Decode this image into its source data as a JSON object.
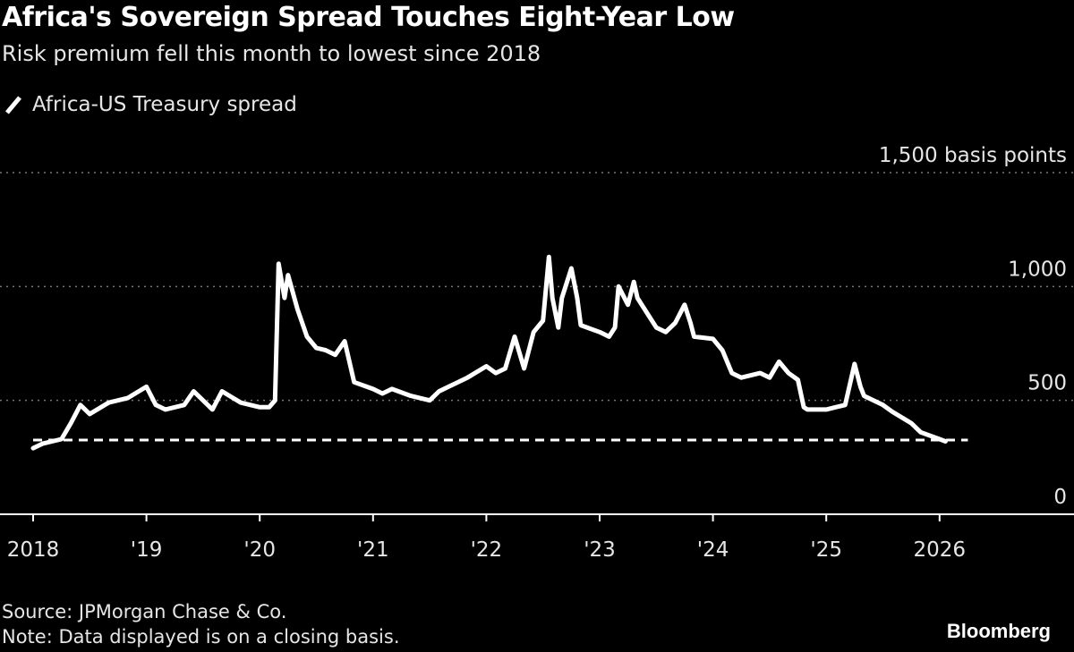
{
  "chart_data": {
    "type": "line",
    "title": "Africa's Sovereign Spread Touches Eight-Year Low",
    "subtitle": "Risk premium fell this month to lowest since 2018",
    "ylabel_unit": "basis points",
    "ylim": [
      0,
      1500
    ],
    "yticks": [
      {
        "value": 0,
        "label": "0"
      },
      {
        "value": 500,
        "label": "500"
      },
      {
        "value": 1000,
        "label": "1,000"
      },
      {
        "value": 1500,
        "label": "1,500 basis points"
      }
    ],
    "xlim": [
      "2018-01",
      "2026-12"
    ],
    "xticks": [
      {
        "date": "2018-01",
        "label": "2018"
      },
      {
        "date": "2019-01",
        "label": "'19"
      },
      {
        "date": "2020-01",
        "label": "'20"
      },
      {
        "date": "2021-01",
        "label": "'21"
      },
      {
        "date": "2022-01",
        "label": "'22"
      },
      {
        "date": "2023-01",
        "label": "'23"
      },
      {
        "date": "2024-01",
        "label": "'24"
      },
      {
        "date": "2025-01",
        "label": "'25"
      },
      {
        "date": "2026-01",
        "label": "2026"
      }
    ],
    "grid": "horizontal dotted",
    "legend_placement": "top-left",
    "reference_line": {
      "value": 326,
      "style": "dashed",
      "from": "2018-01",
      "to": "2026-04"
    },
    "series": [
      {
        "name": "Africa-US Treasury spread",
        "color": "#ffffff",
        "points": [
          [
            "2018-01",
            290
          ],
          [
            "2018-02",
            310
          ],
          [
            "2018-04",
            330
          ],
          [
            "2018-05",
            400
          ],
          [
            "2018-06",
            480
          ],
          [
            "2018-07",
            440
          ],
          [
            "2018-09",
            490
          ],
          [
            "2018-11",
            510
          ],
          [
            "2019-01",
            560
          ],
          [
            "2019-02",
            480
          ],
          [
            "2019-03",
            460
          ],
          [
            "2019-05",
            480
          ],
          [
            "2019-06",
            540
          ],
          [
            "2019-08",
            460
          ],
          [
            "2019-09",
            540
          ],
          [
            "2019-11",
            490
          ],
          [
            "2020-01",
            470
          ],
          [
            "2020-02",
            470
          ],
          [
            "2020-02-20",
            500
          ],
          [
            "2020-03",
            1100
          ],
          [
            "2020-03-20",
            950
          ],
          [
            "2020-04",
            1050
          ],
          [
            "2020-05",
            900
          ],
          [
            "2020-06",
            780
          ],
          [
            "2020-07",
            730
          ],
          [
            "2020-08",
            720
          ],
          [
            "2020-09",
            700
          ],
          [
            "2020-10",
            760
          ],
          [
            "2020-11",
            580
          ],
          [
            "2021-01",
            550
          ],
          [
            "2021-02",
            530
          ],
          [
            "2021-03",
            550
          ],
          [
            "2021-05",
            520
          ],
          [
            "2021-07",
            500
          ],
          [
            "2021-08",
            540
          ],
          [
            "2021-09",
            560
          ],
          [
            "2021-11",
            600
          ],
          [
            "2022-01",
            650
          ],
          [
            "2022-02",
            620
          ],
          [
            "2022-03",
            640
          ],
          [
            "2022-04",
            780
          ],
          [
            "2022-05",
            640
          ],
          [
            "2022-06",
            800
          ],
          [
            "2022-07",
            850
          ],
          [
            "2022-07-20",
            1130
          ],
          [
            "2022-08",
            950
          ],
          [
            "2022-08-20",
            820
          ],
          [
            "2022-09",
            950
          ],
          [
            "2022-10",
            1080
          ],
          [
            "2022-10-20",
            950
          ],
          [
            "2022-11",
            830
          ],
          [
            "2023-01",
            800
          ],
          [
            "2023-02",
            780
          ],
          [
            "2023-02-20",
            820
          ],
          [
            "2023-03",
            1000
          ],
          [
            "2023-04",
            920
          ],
          [
            "2023-04-20",
            1020
          ],
          [
            "2023-05",
            950
          ],
          [
            "2023-07",
            820
          ],
          [
            "2023-08",
            800
          ],
          [
            "2023-09",
            840
          ],
          [
            "2023-10",
            920
          ],
          [
            "2023-10-20",
            840
          ],
          [
            "2023-11",
            780
          ],
          [
            "2024-01",
            770
          ],
          [
            "2024-02",
            720
          ],
          [
            "2024-03",
            620
          ],
          [
            "2024-04",
            600
          ],
          [
            "2024-06",
            620
          ],
          [
            "2024-07",
            600
          ],
          [
            "2024-08",
            670
          ],
          [
            "2024-09",
            620
          ],
          [
            "2024-10",
            590
          ],
          [
            "2024-10-20",
            470
          ],
          [
            "2024-11",
            460
          ],
          [
            "2025-01",
            460
          ],
          [
            "2025-02",
            470
          ],
          [
            "2025-03",
            480
          ],
          [
            "2025-04",
            660
          ],
          [
            "2025-04-20",
            560
          ],
          [
            "2025-05",
            520
          ],
          [
            "2025-07",
            480
          ],
          [
            "2025-08",
            450
          ],
          [
            "2025-10",
            400
          ],
          [
            "2025-11",
            360
          ],
          [
            "2026-01",
            330
          ],
          [
            "2026-01-20",
            320
          ]
        ]
      }
    ],
    "source": "Source: JPMorgan Chase & Co.",
    "note": "Note: Data displayed is on a closing basis.",
    "brand": "Bloomberg"
  }
}
